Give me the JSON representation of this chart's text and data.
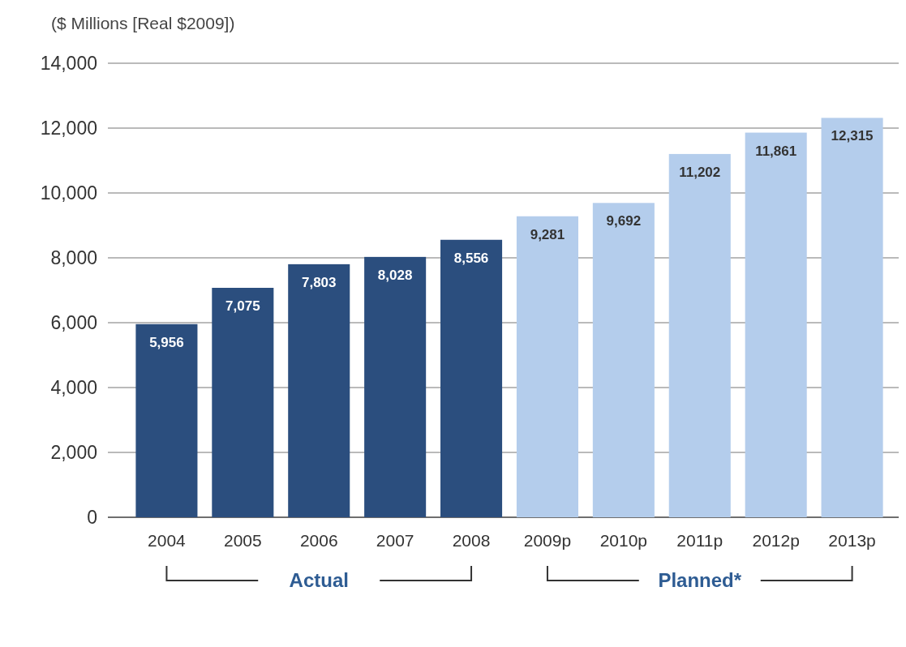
{
  "chart_data": {
    "type": "bar",
    "ylabel": "($ Millions [Real $2009])",
    "categories": [
      "2004",
      "2005",
      "2006",
      "2007",
      "2008",
      "2009p",
      "2010p",
      "2011p",
      "2012p",
      "2013p"
    ],
    "values": [
      5956,
      7075,
      7803,
      8028,
      8556,
      9281,
      9692,
      11202,
      11861,
      12315
    ],
    "colors": [
      "#2b4e7e",
      "#2b4e7e",
      "#2b4e7e",
      "#2b4e7e",
      "#2b4e7e",
      "#b4cdec",
      "#b4cdec",
      "#b4cdec",
      "#b4cdec",
      "#b4cdec"
    ],
    "ylim": [
      0,
      14000
    ],
    "yticks": [
      {
        "value": 0,
        "label": "0"
      },
      {
        "value": 2000,
        "label": "2,000"
      },
      {
        "value": 4000,
        "label": "4,000"
      },
      {
        "value": 6000,
        "label": "6,000"
      },
      {
        "value": 8000,
        "label": "8,000"
      },
      {
        "value": 10000,
        "label": "10,000"
      },
      {
        "value": 12000,
        "label": "12,000"
      },
      {
        "value": 14000,
        "label": "14,000"
      }
    ],
    "grid": "y",
    "value_labels": [
      "5,956",
      "7,075",
      "7,803",
      "8,028",
      "8,556",
      "9,281",
      "9,692",
      "11,202",
      "11,861",
      "12,315"
    ],
    "annotations": [
      "Actual",
      "Planned*"
    ]
  }
}
